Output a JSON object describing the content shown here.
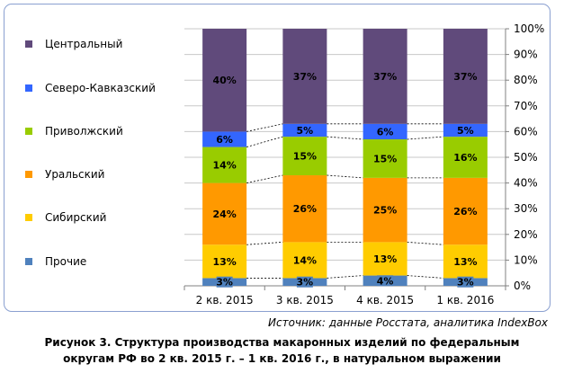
{
  "chart_data": {
    "type": "bar",
    "stacked": true,
    "percent": true,
    "categories": [
      "2 кв. 2015",
      "3 кв. 2015",
      "4 кв. 2015",
      "1 кв. 2016"
    ],
    "series": [
      {
        "name": "Прочие",
        "color": "#4f81bd",
        "values": [
          3,
          3,
          4,
          3
        ]
      },
      {
        "name": "Сибирский",
        "color": "#ffcc00",
        "values": [
          13,
          14,
          13,
          13
        ]
      },
      {
        "name": "Уральский",
        "color": "#ff9900",
        "values": [
          24,
          26,
          25,
          26
        ]
      },
      {
        "name": "Приволжский",
        "color": "#99cc00",
        "values": [
          14,
          15,
          15,
          16
        ]
      },
      {
        "name": "Северо-Кавказский",
        "color": "#3366ff",
        "values": [
          6,
          5,
          6,
          5
        ]
      },
      {
        "name": "Центральный",
        "color": "#604a7b",
        "values": [
          40,
          37,
          37,
          37
        ]
      }
    ],
    "legend_order": [
      "Центральный",
      "Северо-Кавказский",
      "Приволжский",
      "Уральский",
      "Сибирский",
      "Прочие"
    ],
    "data_labels": [
      [
        "3%",
        "13%",
        "24%",
        "14%",
        "6%",
        "40%"
      ],
      [
        "3%",
        "14%",
        "26%",
        "15%",
        "5%",
        "37%"
      ],
      [
        "4%",
        "13%",
        "25%",
        "15%",
        "6%",
        "37%"
      ],
      [
        "3%",
        "13%",
        "26%",
        "16%",
        "5%",
        "37%"
      ]
    ],
    "yticks": [
      "0%",
      "10%",
      "20%",
      "30%",
      "40%",
      "50%",
      "60%",
      "70%",
      "80%",
      "90%",
      "100%"
    ],
    "ylim": [
      0,
      100
    ],
    "legend_position": "left"
  },
  "source": "Источник: данные Росстата, аналитика IndexBox",
  "caption_line1": "Рисунок 3. Структура производства макаронных изделий по федеральным",
  "caption_line2": "округам РФ во 2 кв. 2015 г. – 1 кв. 2016 г., в натуральном выражении"
}
